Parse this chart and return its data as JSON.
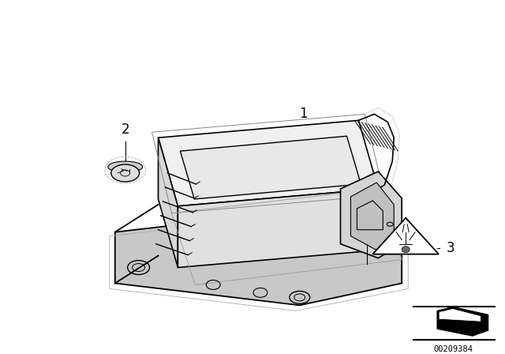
{
  "bg_color": "#ffffff",
  "line_color": "#000000",
  "part_number": "00209384",
  "label_1": [
    0.455,
    0.81
  ],
  "label_2": [
    0.195,
    0.795
  ],
  "label_3": [
    0.76,
    0.435
  ],
  "figsize": [
    6.4,
    4.48
  ],
  "dpi": 100
}
